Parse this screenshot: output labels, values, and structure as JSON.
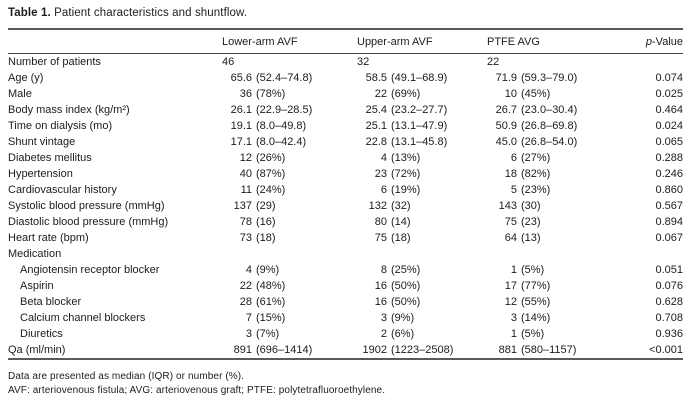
{
  "table": {
    "caption": {
      "label": "Table 1.",
      "text": "Patient characteristics and shuntflow."
    },
    "columns": {
      "col1": "Lower-arm AVF",
      "col2": "Upper-arm AVF",
      "col3": "PTFE AVG",
      "p_italic": "p",
      "p_rest": "-Value"
    },
    "rows": [
      {
        "label": "Number of patients",
        "indent": false,
        "lower_arm_avf": "46",
        "upper_arm_avf": "32",
        "ptfe_avg": "22",
        "p_value": ""
      },
      {
        "label": "Age (y)",
        "indent": false,
        "lower_arm_avf": "65.6 (52.4–74.8)",
        "upper_arm_avf": "58.5 (49.1–68.9)",
        "ptfe_avg": "71.9 (59.3–79.0)",
        "p_value": "0.074"
      },
      {
        "label": "Male",
        "indent": false,
        "lower_arm_avf": "36 (78%)",
        "upper_arm_avf": "22 (69%)",
        "ptfe_avg": "10 (45%)",
        "p_value": "0.025"
      },
      {
        "label": "Body mass index (kg/m²)",
        "indent": false,
        "lower_arm_avf": "26.1 (22.9–28.5)",
        "upper_arm_avf": "25.4 (23.2–27.7)",
        "ptfe_avg": "26.7 (23.0–30.4)",
        "p_value": "0.464"
      },
      {
        "label": "Time on dialysis (mo)",
        "indent": false,
        "lower_arm_avf": "19.1 (8.0–49.8)",
        "upper_arm_avf": "25.1 (13.1–47.9)",
        "ptfe_avg": "50.9 (26.8–69.8)",
        "p_value": "0.024"
      },
      {
        "label": "Shunt vintage",
        "indent": false,
        "lower_arm_avf": "17.1 (8.0–42.4)",
        "upper_arm_avf": "22.8 (13.1–45.8)",
        "ptfe_avg": "45.0 (26.8–54.0)",
        "p_value": "0.065"
      },
      {
        "label": "Diabetes mellitus",
        "indent": false,
        "lower_arm_avf": "12 (26%)",
        "upper_arm_avf": "4 (13%)",
        "ptfe_avg": "6 (27%)",
        "p_value": "0.288"
      },
      {
        "label": "Hypertension",
        "indent": false,
        "lower_arm_avf": "40 (87%)",
        "upper_arm_avf": "23 (72%)",
        "ptfe_avg": "18 (82%)",
        "p_value": "0.246"
      },
      {
        "label": "Cardiovascular history",
        "indent": false,
        "lower_arm_avf": "11 (24%)",
        "upper_arm_avf": "6 (19%)",
        "ptfe_avg": "5 (23%)",
        "p_value": "0.860"
      },
      {
        "label": "Systolic blood pressure (mmHg)",
        "indent": false,
        "lower_arm_avf": "137 (29)",
        "upper_arm_avf": "132 (32)",
        "ptfe_avg": "143 (30)",
        "p_value": "0.567"
      },
      {
        "label": "Diastolic blood pressure (mmHg)",
        "indent": false,
        "lower_arm_avf": "78 (16)",
        "upper_arm_avf": "80 (14)",
        "ptfe_avg": "75 (23)",
        "p_value": "0.894"
      },
      {
        "label": "Heart rate (bpm)",
        "indent": false,
        "lower_arm_avf": "73 (18)",
        "upper_arm_avf": "75 (18)",
        "ptfe_avg": "64 (13)",
        "p_value": "0.067"
      },
      {
        "label": "Medication",
        "indent": false,
        "lower_arm_avf": "",
        "upper_arm_avf": "",
        "ptfe_avg": "",
        "p_value": ""
      },
      {
        "label": "Angiotensin receptor blocker",
        "indent": true,
        "lower_arm_avf": "4 (9%)",
        "upper_arm_avf": "8 (25%)",
        "ptfe_avg": "1 (5%)",
        "p_value": "0.051"
      },
      {
        "label": "Aspirin",
        "indent": true,
        "lower_arm_avf": "22 (48%)",
        "upper_arm_avf": "16 (50%)",
        "ptfe_avg": "17 (77%)",
        "p_value": "0.076"
      },
      {
        "label": "Beta blocker",
        "indent": true,
        "lower_arm_avf": "28 (61%)",
        "upper_arm_avf": "16 (50%)",
        "ptfe_avg": "12 (55%)",
        "p_value": "0.628"
      },
      {
        "label": "Calcium channel blockers",
        "indent": true,
        "lower_arm_avf": "7 (15%)",
        "upper_arm_avf": "3 (9%)",
        "ptfe_avg": "3 (14%)",
        "p_value": "0.708"
      },
      {
        "label": "Diuretics",
        "indent": true,
        "lower_arm_avf": "3 (7%)",
        "upper_arm_avf": "2 (6%)",
        "ptfe_avg": "1 (5%)",
        "p_value": "0.936"
      },
      {
        "label": "Qa (ml/min)",
        "indent": false,
        "lower_arm_avf": "891 (696–1414)",
        "upper_arm_avf": "1902 (1223–2508)",
        "ptfe_avg": "881 (580–1157)",
        "p_value": "<0.001"
      }
    ],
    "footnotes": [
      "Data are presented as median (IQR) or number (%).",
      "AVF: arteriovenous fistula; AVG: arteriovenous graft; PTFE: polytetrafluoroethylene."
    ]
  }
}
